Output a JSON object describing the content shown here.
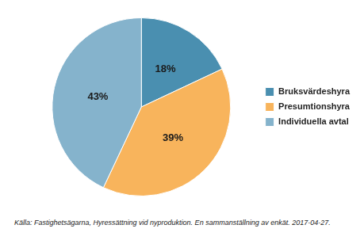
{
  "chart_data": {
    "type": "pie",
    "categories": [
      "Bruksvärdeshyra",
      "Presumtionshyra",
      "Individuella avtal"
    ],
    "values": [
      18,
      39,
      43
    ],
    "value_labels": [
      "18%",
      "39%",
      "43%"
    ],
    "colors": [
      "#4a8fb0",
      "#f8b45c",
      "#85b3cc"
    ],
    "data_labels": true,
    "legend": "right",
    "source": "Källa: Fastighetsägarna, Hyressättning vid nyproduktion. En sammanställning av enkät. 2017-04-27."
  }
}
